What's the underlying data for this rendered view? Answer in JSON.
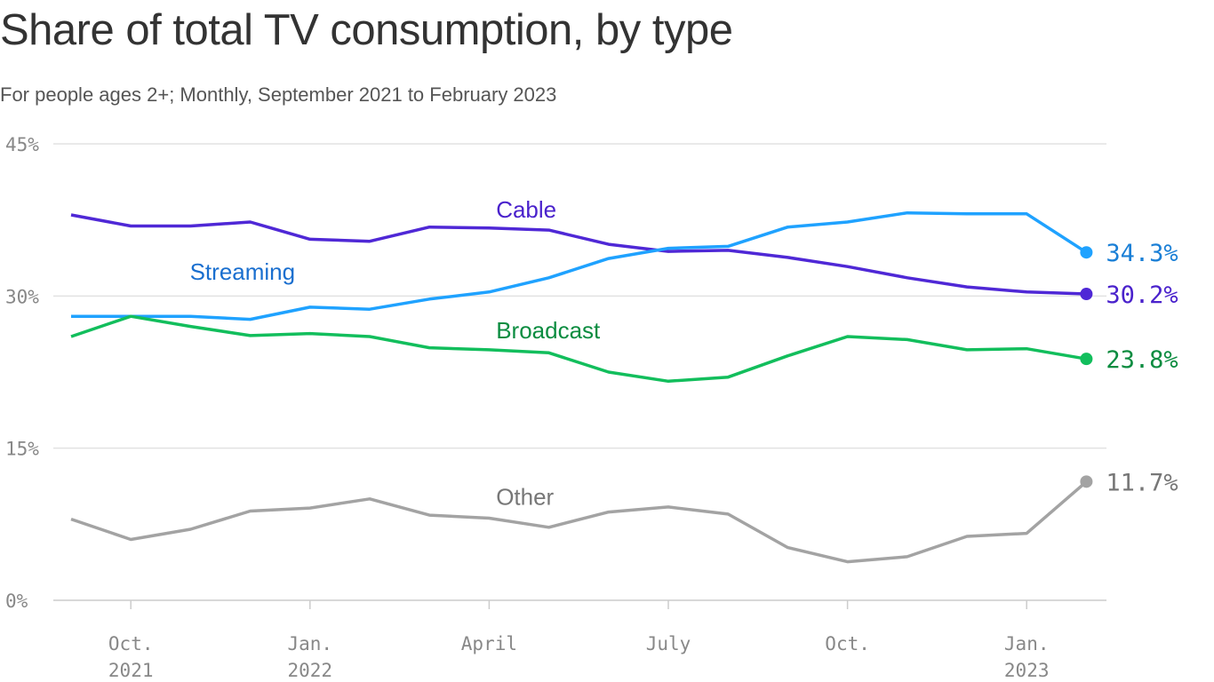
{
  "chart_data": {
    "type": "line",
    "title": "Share of total TV consumption, by type",
    "subtitle": "For people ages 2+; Monthly, September 2021 to February 2023",
    "x": [
      "2021-09",
      "2021-10",
      "2021-11",
      "2021-12",
      "2022-01",
      "2022-02",
      "2022-03",
      "2022-04",
      "2022-05",
      "2022-06",
      "2022-07",
      "2022-08",
      "2022-09",
      "2022-10",
      "2022-11",
      "2022-12",
      "2023-01",
      "2023-02"
    ],
    "x_ticks": [
      {
        "x": "2021-10",
        "label": [
          "Oct.",
          "2021"
        ]
      },
      {
        "x": "2022-01",
        "label": [
          "Jan.",
          "2022"
        ]
      },
      {
        "x": "2022-04",
        "label": [
          "April"
        ]
      },
      {
        "x": "2022-07",
        "label": [
          "July"
        ]
      },
      {
        "x": "2022-10",
        "label": [
          "Oct."
        ]
      },
      {
        "x": "2023-01",
        "label": [
          "Jan.",
          "2023"
        ]
      }
    ],
    "y_ticks": [
      0,
      15,
      30,
      45
    ],
    "y_tick_labels": [
      "0%",
      "15%",
      "30%",
      "45%"
    ],
    "ylim": [
      0,
      45
    ],
    "grid": "horizontal",
    "series": [
      {
        "name": "Cable",
        "color": "#4f28d6",
        "label_color": "#4a22cc",
        "end_label": "30.2%",
        "label_x": "2022-03",
        "label_y": 38.5,
        "values": [
          38.0,
          36.9,
          36.9,
          37.3,
          35.6,
          35.4,
          36.8,
          36.7,
          36.5,
          35.1,
          34.4,
          34.5,
          33.8,
          32.9,
          31.8,
          30.9,
          30.4,
          30.2
        ]
      },
      {
        "name": "Streaming",
        "color": "#1fa2ff",
        "label_color": "#1a6fcf",
        "end_label": "34.3%",
        "label_x": "2021-12",
        "label_y": 32.4,
        "values": [
          28.0,
          28.0,
          28.0,
          27.7,
          28.9,
          28.7,
          29.7,
          30.4,
          31.8,
          33.7,
          34.7,
          34.9,
          36.8,
          37.3,
          38.2,
          38.1,
          38.1,
          34.3
        ]
      },
      {
        "name": "Broadcast",
        "color": "#12be5c",
        "label_color": "#0b8c40",
        "end_label": "23.8%",
        "label_x": "2022-03",
        "label_y": 26.6,
        "values": [
          26.0,
          28.0,
          27.0,
          26.1,
          26.3,
          26.0,
          24.9,
          24.7,
          24.4,
          22.5,
          21.6,
          22.0,
          24.1,
          26.0,
          25.7,
          24.7,
          24.8,
          23.8
        ]
      },
      {
        "name": "Other",
        "color": "#a3a3a3",
        "label_color": "#777777",
        "end_label": "11.7%",
        "label_x": "2022-03",
        "label_y": 10.2,
        "values": [
          8.0,
          6.0,
          7.0,
          8.8,
          9.1,
          10.0,
          8.4,
          8.1,
          7.2,
          8.7,
          9.2,
          8.5,
          5.2,
          3.8,
          4.3,
          6.3,
          6.6,
          11.7
        ]
      }
    ],
    "end_label_colors": [
      "#4a22cc",
      "#1a7fd6",
      "#0b8c40",
      "#777777"
    ]
  }
}
